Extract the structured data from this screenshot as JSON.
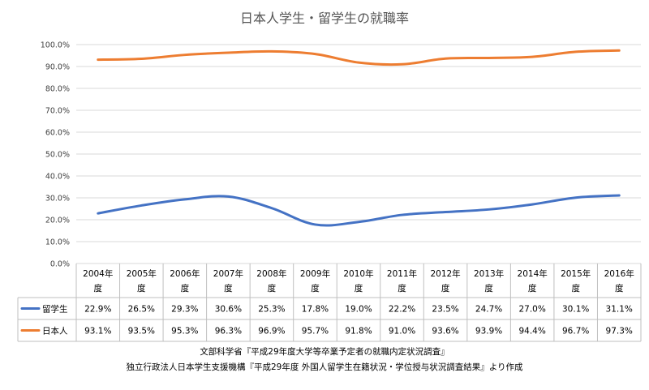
{
  "chart_data": {
    "type": "line",
    "title": "日本人学生・留学生の就職率",
    "categories": [
      [
        "2004年",
        "度"
      ],
      [
        "2005年",
        "度"
      ],
      [
        "2006年",
        "度"
      ],
      [
        "2007年",
        "度"
      ],
      [
        "2008年",
        "度"
      ],
      [
        "2009年",
        "度"
      ],
      [
        "2010年",
        "度"
      ],
      [
        "2011年",
        "度"
      ],
      [
        "2012年",
        "度"
      ],
      [
        "2013年",
        "度"
      ],
      [
        "2014年",
        "度"
      ],
      [
        "2015年",
        "度"
      ],
      [
        "2016年",
        "度"
      ]
    ],
    "yticks": [
      "100.0%",
      "90.0%",
      "80.0%",
      "70.0%",
      "60.0%",
      "50.0%",
      "40.0%",
      "30.0%",
      "20.0%",
      "10.0%",
      "0.0%"
    ],
    "ylim": [
      0,
      100
    ],
    "grid": true,
    "legend": "data-table",
    "series": [
      {
        "name": "留学生",
        "color": "#4472C4",
        "values": [
          22.9,
          26.5,
          29.3,
          30.6,
          25.3,
          17.8,
          19.0,
          22.2,
          23.5,
          24.7,
          27.0,
          30.1,
          31.1
        ],
        "labels": [
          "22.9%",
          "26.5%",
          "29.3%",
          "30.6%",
          "25.3%",
          "17.8%",
          "19.0%",
          "22.2%",
          "23.5%",
          "24.7%",
          "27.0%",
          "30.1%",
          "31.1%"
        ]
      },
      {
        "name": "日本人",
        "color": "#ED7D31",
        "values": [
          93.1,
          93.5,
          95.3,
          96.3,
          96.9,
          95.7,
          91.8,
          91.0,
          93.6,
          93.9,
          94.4,
          96.7,
          97.3
        ],
        "labels": [
          "93.1%",
          "93.5%",
          "95.3%",
          "96.3%",
          "96.9%",
          "95.7%",
          "91.8%",
          "91.0%",
          "93.6%",
          "93.9%",
          "94.4%",
          "96.7%",
          "97.3%"
        ]
      }
    ]
  },
  "sources": [
    "文部科学省『平成29年度大学等卒業予定者の就職内定状況調査』",
    "独立行政法人日本学生支援機構『平成29年度 外国人留学生在籍状況・学位授与状況調査結果』より作成"
  ]
}
